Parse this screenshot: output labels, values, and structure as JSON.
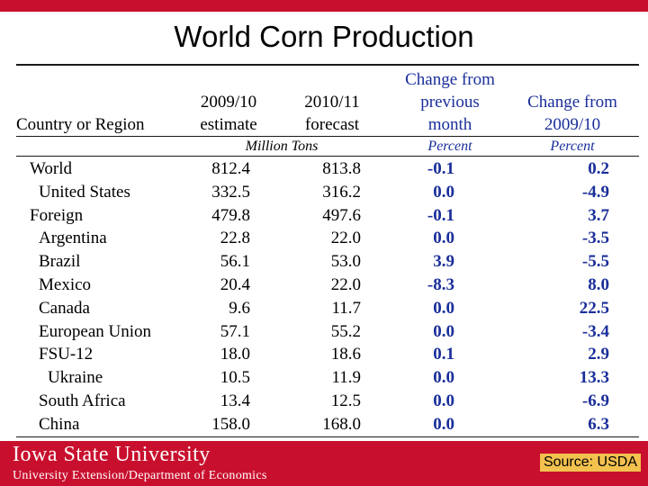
{
  "slide": {
    "title": "World Corn Production",
    "university": "Iowa State University",
    "department": "University Extension/Department of Economics",
    "source": "Source: USDA",
    "brand_color": "#c8102e",
    "accent_color": "#1a2e9a"
  },
  "table": {
    "headers": {
      "country": "Country or Region",
      "col1_line1": "2009/10",
      "col1_line2": "estimate",
      "col2_line1": "2010/11",
      "col2_line2": "forecast",
      "col3_line1": "Change from",
      "col3_line2": "previous",
      "col3_line3": "month",
      "col4_line1": "Change from",
      "col4_line2": "2009/10"
    },
    "units": {
      "tons": "Million Tons",
      "pct_month": "Percent",
      "pct_year": "Percent"
    },
    "rows": [
      {
        "name": "World",
        "est": "812.4",
        "fc": "813.8",
        "chg_month": "-0.1",
        "chg_year": "0.2"
      },
      {
        "name": "United States",
        "est": "332.5",
        "fc": "316.2",
        "chg_month": "0.0",
        "chg_year": "-4.9"
      },
      {
        "name": "Foreign",
        "est": "479.8",
        "fc": "497.6",
        "chg_month": "-0.1",
        "chg_year": "3.7"
      },
      {
        "name": "Argentina",
        "est": "22.8",
        "fc": "22.0",
        "chg_month": "0.0",
        "chg_year": "-3.5"
      },
      {
        "name": "Brazil",
        "est": "56.1",
        "fc": "53.0",
        "chg_month": "3.9",
        "chg_year": "-5.5"
      },
      {
        "name": "Mexico",
        "est": "20.4",
        "fc": "22.0",
        "chg_month": "-8.3",
        "chg_year": "8.0"
      },
      {
        "name": "Canada",
        "est": "9.6",
        "fc": "11.7",
        "chg_month": "0.0",
        "chg_year": "22.5"
      },
      {
        "name": "European Union",
        "est": "57.1",
        "fc": "55.2",
        "chg_month": "0.0",
        "chg_year": "-3.4"
      },
      {
        "name": "FSU-12",
        "est": "18.0",
        "fc": "18.6",
        "chg_month": "0.1",
        "chg_year": "2.9"
      },
      {
        "name": "Ukraine",
        "est": "10.5",
        "fc": "11.9",
        "chg_month": "0.0",
        "chg_year": "13.3"
      },
      {
        "name": "South Africa",
        "est": "13.4",
        "fc": "12.5",
        "chg_month": "0.0",
        "chg_year": "-6.9"
      },
      {
        "name": "China",
        "est": "158.0",
        "fc": "168.0",
        "chg_month": "0.0",
        "chg_year": "6.3"
      }
    ]
  }
}
